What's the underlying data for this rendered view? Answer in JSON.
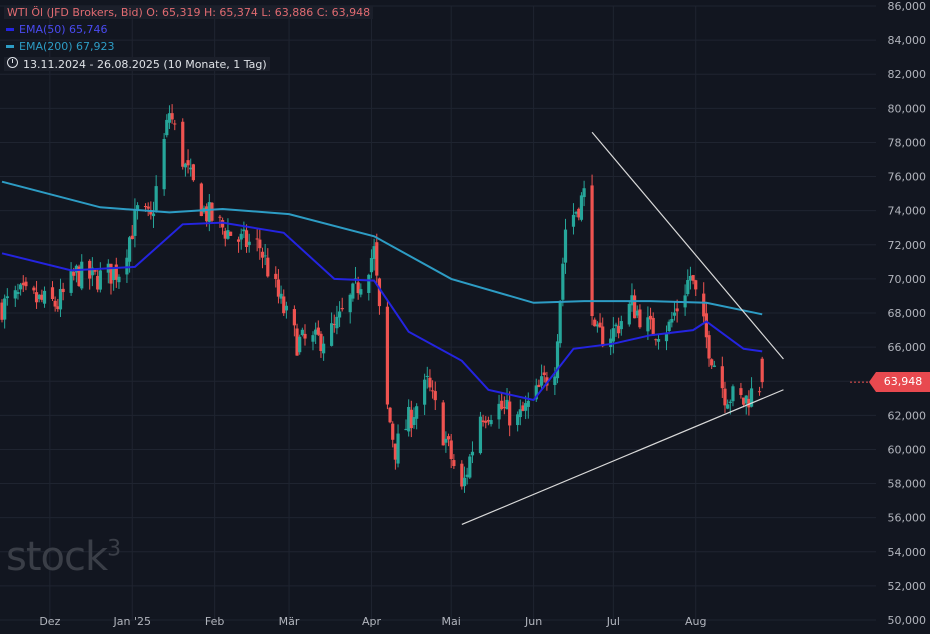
{
  "legend": {
    "title": "WTI Öl (JFD Brokers, Bid)  O: 65,319  H: 65,374  L: 63,886  C: 63,948",
    "ema50": "EMA(50)  65,746",
    "ema200": "EMA(200)  67,923",
    "range": "13.11.2024 - 26.08.2025  (10 Monate, 1 Tag)"
  },
  "watermark": {
    "text": "stock",
    "sup": "3"
  },
  "last_price_label": "63,948",
  "colors": {
    "background": "#121620",
    "grid": "#1f2430",
    "up": "#26a69a",
    "down": "#ef5350",
    "ema50": "#2424e0",
    "ema200": "#2d9cc4",
    "trendline": "#d9d9d9",
    "price_tag": "#e8494f"
  },
  "chart_data": {
    "type": "candlestick",
    "title": "WTI Öl (JFD Brokers, Bid)",
    "ohlc_last": {
      "open": 65.319,
      "high": 65.374,
      "low": 63.886,
      "close": 63.948
    },
    "ylim": [
      50,
      86
    ],
    "y_ticks": [
      "50,000",
      "52,000",
      "54,000",
      "56,000",
      "58,000",
      "60,000",
      "62,000",
      "64,000",
      "66,000",
      "68,000",
      "70,000",
      "72,000",
      "74,000",
      "76,000",
      "78,000",
      "80,000",
      "82,000",
      "84,000",
      "86,000"
    ],
    "x_ticks": [
      "Dez",
      "Jan '25",
      "Feb",
      "Mär",
      "Apr",
      "Mai",
      "Jun",
      "Jul",
      "Aug"
    ],
    "grid": true,
    "close_series": [
      {
        "date": "2024-11-13",
        "close": 68.4
      },
      {
        "date": "2024-11-20",
        "close": 69.0
      },
      {
        "date": "2024-11-27",
        "close": 68.7
      },
      {
        "date": "2024-12-04",
        "close": 68.5
      },
      {
        "date": "2024-12-11",
        "close": 70.3
      },
      {
        "date": "2024-12-18",
        "close": 70.0
      },
      {
        "date": "2024-12-27",
        "close": 70.5
      },
      {
        "date": "2025-01-03",
        "close": 73.9
      },
      {
        "date": "2025-01-08",
        "close": 73.4
      },
      {
        "date": "2025-01-15",
        "close": 79.8
      },
      {
        "date": "2025-01-21",
        "close": 76.5
      },
      {
        "date": "2025-01-28",
        "close": 74.0
      },
      {
        "date": "2025-02-04",
        "close": 73.0
      },
      {
        "date": "2025-02-11",
        "close": 72.2
      },
      {
        "date": "2025-02-18",
        "close": 71.9
      },
      {
        "date": "2025-02-25",
        "close": 68.9
      },
      {
        "date": "2025-03-04",
        "close": 66.3
      },
      {
        "date": "2025-03-11",
        "close": 66.3
      },
      {
        "date": "2025-03-18",
        "close": 67.0
      },
      {
        "date": "2025-03-25",
        "close": 69.0
      },
      {
        "date": "2025-04-02",
        "close": 71.6
      },
      {
        "date": "2025-04-07",
        "close": 62.4
      },
      {
        "date": "2025-04-10",
        "close": 60.0
      },
      {
        "date": "2025-04-15",
        "close": 61.7
      },
      {
        "date": "2025-04-22",
        "close": 63.8
      },
      {
        "date": "2025-04-29",
        "close": 60.5
      },
      {
        "date": "2025-05-05",
        "close": 57.5
      },
      {
        "date": "2025-05-12",
        "close": 62.1
      },
      {
        "date": "2025-05-19",
        "close": 62.5
      },
      {
        "date": "2025-05-26",
        "close": 61.7
      },
      {
        "date": "2025-06-02",
        "close": 63.2
      },
      {
        "date": "2025-06-09",
        "close": 65.0
      },
      {
        "date": "2025-06-13",
        "close": 73.0
      },
      {
        "date": "2025-06-20",
        "close": 74.9
      },
      {
        "date": "2025-06-24",
        "close": 66.5
      },
      {
        "date": "2025-07-01",
        "close": 66.9
      },
      {
        "date": "2025-07-08",
        "close": 68.5
      },
      {
        "date": "2025-07-15",
        "close": 67.0
      },
      {
        "date": "2025-07-22",
        "close": 67.2
      },
      {
        "date": "2025-07-30",
        "close": 70.2
      },
      {
        "date": "2025-08-05",
        "close": 66.5
      },
      {
        "date": "2025-08-12",
        "close": 63.3
      },
      {
        "date": "2025-08-19",
        "close": 62.8
      },
      {
        "date": "2025-08-26",
        "close": 63.948
      }
    ],
    "ema50": [
      {
        "date": "2024-11-13",
        "value": 71.5
      },
      {
        "date": "2024-12-09",
        "value": 70.5
      },
      {
        "date": "2025-01-02",
        "value": 70.7
      },
      {
        "date": "2025-01-20",
        "value": 73.2
      },
      {
        "date": "2025-02-04",
        "value": 73.3
      },
      {
        "date": "2025-02-27",
        "value": 72.7
      },
      {
        "date": "2025-03-18",
        "value": 70.0
      },
      {
        "date": "2025-04-02",
        "value": 69.9
      },
      {
        "date": "2025-04-15",
        "value": 66.9
      },
      {
        "date": "2025-05-05",
        "value": 65.2
      },
      {
        "date": "2025-05-15",
        "value": 63.5
      },
      {
        "date": "2025-06-01",
        "value": 62.9
      },
      {
        "date": "2025-06-16",
        "value": 65.9
      },
      {
        "date": "2025-07-01",
        "value": 66.2
      },
      {
        "date": "2025-07-15",
        "value": 66.7
      },
      {
        "date": "2025-07-31",
        "value": 67.0
      },
      {
        "date": "2025-08-05",
        "value": 67.5
      },
      {
        "date": "2025-08-19",
        "value": 65.9
      },
      {
        "date": "2025-08-26",
        "value": 65.746
      }
    ],
    "ema200": [
      {
        "date": "2024-11-13",
        "value": 75.7
      },
      {
        "date": "2024-12-20",
        "value": 74.2
      },
      {
        "date": "2025-01-15",
        "value": 73.9
      },
      {
        "date": "2025-02-04",
        "value": 74.1
      },
      {
        "date": "2025-03-01",
        "value": 73.8
      },
      {
        "date": "2025-04-02",
        "value": 72.5
      },
      {
        "date": "2025-05-01",
        "value": 70.0
      },
      {
        "date": "2025-06-01",
        "value": 68.6
      },
      {
        "date": "2025-06-20",
        "value": 68.7
      },
      {
        "date": "2025-07-15",
        "value": 68.7
      },
      {
        "date": "2025-08-05",
        "value": 68.6
      },
      {
        "date": "2025-08-26",
        "value": 67.923
      }
    ],
    "trendlines": [
      {
        "from": {
          "date": "2025-05-05",
          "value": 55.6
        },
        "to": {
          "date": "2025-09-03",
          "value": 63.5
        }
      },
      {
        "from": {
          "date": "2025-06-23",
          "value": 78.6
        },
        "to": {
          "date": "2025-09-03",
          "value": 65.3
        }
      }
    ]
  }
}
